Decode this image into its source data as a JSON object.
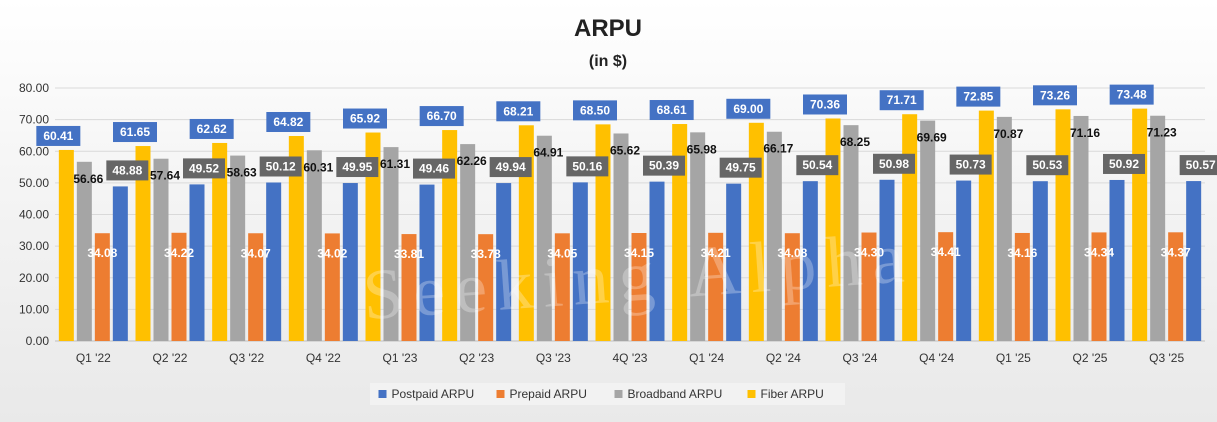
{
  "chart_data": {
    "type": "bar",
    "title": "ARPU",
    "subtitle": "(in $)",
    "xlabel": "",
    "ylabel": "",
    "ylim": [
      0,
      80
    ],
    "yticks": [
      "0.00",
      "10.00",
      "20.00",
      "30.00",
      "40.00",
      "50.00",
      "60.00",
      "70.00",
      "80.00"
    ],
    "grid": true,
    "legend_position": "bottom",
    "categories": [
      "Q1 '22",
      "Q2 '22",
      "Q3 '22",
      "Q4 '22",
      "Q1 '23",
      "Q2 '23",
      "Q3 '23",
      "4Q '23",
      "Q1 '24",
      "Q2 '24",
      "Q3 '24",
      "Q4 '24",
      "Q1 '25",
      "Q2 '25",
      "Q3 '25"
    ],
    "series": [
      {
        "name": "Fiber ARPU",
        "color": "#FFC000",
        "label_style": "blue-box",
        "values": [
          60.41,
          61.65,
          62.62,
          64.82,
          65.92,
          66.7,
          68.21,
          68.5,
          68.61,
          69.0,
          70.36,
          71.71,
          72.85,
          73.26,
          73.48
        ],
        "labels": [
          "60.41",
          "61.65",
          "62.62",
          "64.82",
          "65.92",
          "66.70",
          "68.21",
          "68.50",
          "68.61",
          "69.00",
          "70.36",
          "71.71",
          "72.85",
          "73.26",
          "73.48"
        ]
      },
      {
        "name": "Broadband ARPU",
        "color": "#A5A5A5",
        "label_style": "plain",
        "values": [
          56.66,
          57.64,
          58.63,
          60.31,
          61.31,
          62.26,
          64.91,
          65.62,
          65.98,
          66.17,
          68.25,
          69.69,
          70.87,
          71.16,
          71.23
        ],
        "labels": [
          "56.66",
          "57.64",
          "58.63",
          "60.31",
          "61.31",
          "62.26",
          "64.91",
          "65.62",
          "65.98",
          "66.17",
          "68.25",
          "69.69",
          "70.87",
          "71.16",
          "71.23"
        ]
      },
      {
        "name": "Prepaid ARPU",
        "color": "#ED7D31",
        "label_style": "inside-white",
        "values": [
          34.08,
          34.22,
          34.07,
          34.02,
          33.81,
          33.78,
          34.05,
          34.15,
          34.21,
          34.08,
          34.3,
          34.41,
          34.16,
          34.34,
          34.37
        ],
        "labels": [
          "34.08",
          "34.22",
          "34.07",
          "34.02",
          "33.81",
          "33.78",
          "34.05",
          "34.15",
          "34.21",
          "34.08",
          "34.30",
          "34.41",
          "34.16",
          "34.34",
          "34.37"
        ]
      },
      {
        "name": "Postpaid ARPU",
        "color": "#4472C4",
        "label_style": "gray-box",
        "values": [
          48.88,
          49.52,
          50.12,
          49.95,
          49.46,
          49.94,
          50.16,
          50.39,
          49.75,
          50.54,
          50.98,
          50.73,
          50.53,
          50.92,
          50.57
        ],
        "labels": [
          "48.88",
          "49.52",
          "50.12",
          "49.95",
          "49.46",
          "49.94",
          "50.16",
          "50.39",
          "49.75",
          "50.54",
          "50.98",
          "50.73",
          "50.53",
          "50.92",
          "50.57"
        ]
      }
    ],
    "legend_order": [
      "Postpaid ARPU",
      "Prepaid ARPU",
      "Broadband ARPU",
      "Fiber ARPU"
    ]
  },
  "watermark": "Seeking Alpha"
}
